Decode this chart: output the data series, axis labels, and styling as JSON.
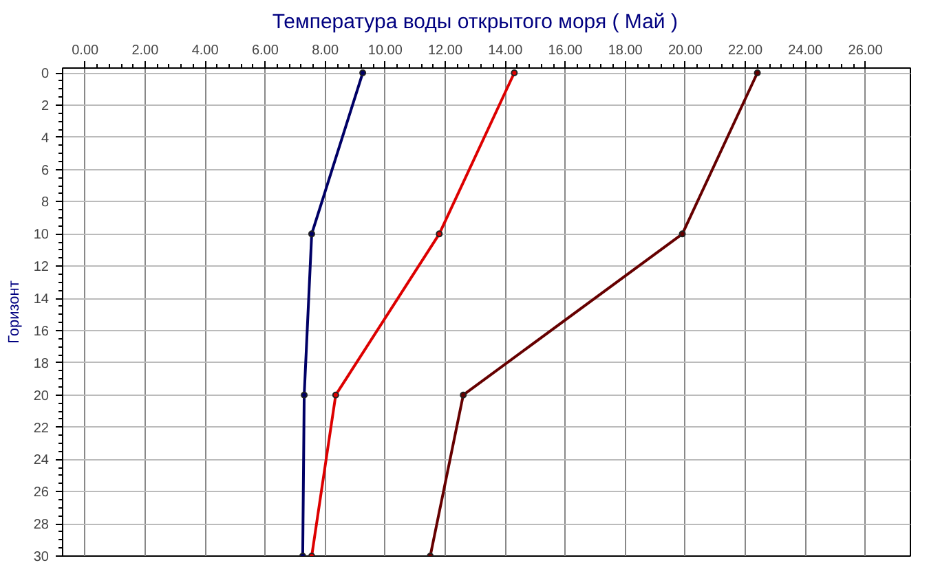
{
  "chart_data": {
    "type": "line",
    "title": "Температура воды открытого моря     ( Май )",
    "ylabel": "Горизонт",
    "series": [
      {
        "color": "#000066",
        "x": [
          9.25,
          7.55,
          7.3,
          7.25
        ],
        "values": [
          0,
          10,
          20,
          30
        ]
      },
      {
        "color": "#dd0000",
        "x": [
          14.3,
          11.8,
          8.35,
          7.55
        ],
        "values": [
          0,
          10,
          20,
          30
        ]
      },
      {
        "color": "#660000",
        "x": [
          22.4,
          19.9,
          12.6,
          11.5
        ],
        "values": [
          0,
          10,
          20,
          30
        ]
      }
    ],
    "xlim": [
      -0.75,
      27.5
    ],
    "xticks": [
      {
        "value": 0,
        "label": "0.00"
      },
      {
        "value": 2,
        "label": "2.00"
      },
      {
        "value": 4,
        "label": "4.00"
      },
      {
        "value": 6,
        "label": "6.00"
      },
      {
        "value": 8,
        "label": "8.00"
      },
      {
        "value": 10,
        "label": "10.00"
      },
      {
        "value": 12,
        "label": "12.00"
      },
      {
        "value": 14,
        "label": "14.00"
      },
      {
        "value": 16,
        "label": "16.00"
      },
      {
        "value": 18,
        "label": "18.00"
      },
      {
        "value": 20,
        "label": "20.00"
      },
      {
        "value": 22,
        "label": "22.00"
      },
      {
        "value": 24,
        "label": "24.00"
      },
      {
        "value": 26,
        "label": "26.00"
      }
    ],
    "ylim": [
      30,
      -0.3
    ],
    "yticks": [
      0,
      2,
      4,
      6,
      8,
      10,
      12,
      14,
      16,
      18,
      20,
      22,
      24,
      26,
      28,
      30
    ],
    "grid": true,
    "marker": "circle",
    "line_style": "solid"
  }
}
